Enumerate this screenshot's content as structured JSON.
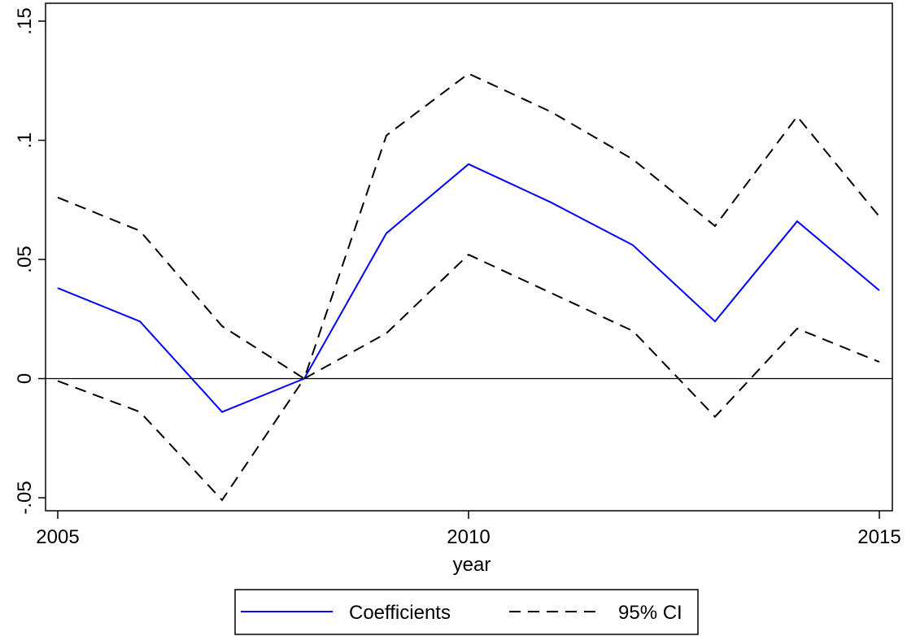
{
  "chart_data": {
    "type": "line",
    "title": "",
    "xlabel": "year",
    "ylabel": "",
    "xlim": [
      2005,
      2015
    ],
    "ylim": [
      -0.05,
      0.15
    ],
    "xticks": [
      2005,
      2010,
      2015
    ],
    "xtick_labels": [
      "2005",
      "2010",
      "2015"
    ],
    "yticks": [
      -0.05,
      0,
      0.05,
      0.1,
      0.15
    ],
    "ytick_labels": [
      "-.05",
      "0",
      ".05",
      ".1",
      ".15"
    ],
    "grid": false,
    "reference_line": 0,
    "legend_position": "bottom",
    "x": [
      2005,
      2006,
      2007,
      2008,
      2009,
      2010,
      2011,
      2012,
      2013,
      2014,
      2015
    ],
    "series": [
      {
        "name": "Coefficients",
        "color": "#0000ff",
        "style": "solid",
        "values": [
          0.038,
          0.024,
          -0.014,
          0.0,
          0.061,
          0.09,
          0.074,
          0.056,
          0.024,
          0.066,
          0.037
        ]
      },
      {
        "name": "95% CI",
        "color": "#000000",
        "style": "dashed",
        "values": [
          0.076,
          0.062,
          0.022,
          0.0,
          0.102,
          0.128,
          0.112,
          0.092,
          0.064,
          0.11,
          0.068
        ]
      },
      {
        "name": "",
        "color": "#000000",
        "style": "dashed",
        "values": [
          -0.001,
          -0.014,
          -0.051,
          0.0,
          0.019,
          0.052,
          0.036,
          0.02,
          -0.016,
          0.021,
          0.007
        ]
      }
    ],
    "legend": [
      {
        "label": "Coefficients",
        "color": "#0000ff",
        "style": "solid"
      },
      {
        "label": "95% CI",
        "color": "#000000",
        "style": "dashed"
      }
    ]
  }
}
